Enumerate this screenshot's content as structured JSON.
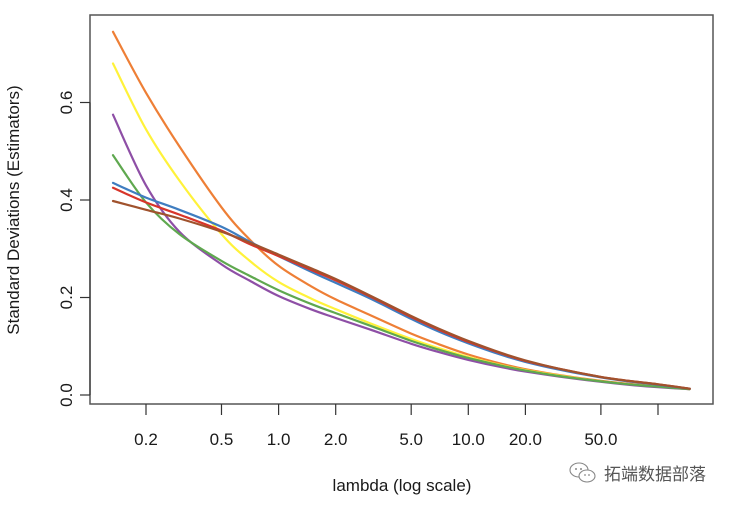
{
  "chart_data": {
    "type": "line",
    "title": "",
    "xlabel": "lambda (log scale)",
    "ylabel": "Standard Deviations (Estimators)",
    "xscale": "log",
    "xlim": [
      0.12,
      160
    ],
    "ylim": [
      -0.015,
      0.78
    ],
    "grid": false,
    "legend": "none",
    "xticks": [
      0.2,
      0.5,
      1.0,
      2.0,
      5.0,
      10.0,
      20.0,
      50.0,
      100.0
    ],
    "xtick_labels": [
      "0.2",
      "0.5",
      "1.0",
      "2.0",
      "5.0",
      "10.0",
      "20.0",
      "50.0",
      ""
    ],
    "yticks": [
      0.0,
      0.2,
      0.4,
      0.6
    ],
    "ytick_labels": [
      "0.0",
      "0.2",
      "0.4",
      "0.6"
    ],
    "x": [
      0.134,
      0.2,
      0.3,
      0.5,
      0.7,
      1.0,
      1.5,
      2.0,
      3.0,
      5.0,
      7.0,
      10.0,
      15.0,
      20.0,
      30.0,
      50.0,
      70.0,
      100.0,
      147.0
    ],
    "series": [
      {
        "name": "orange",
        "color": "#EE7F36",
        "values": [
          0.745,
          0.62,
          0.51,
          0.385,
          0.32,
          0.265,
          0.222,
          0.196,
          0.165,
          0.126,
          0.104,
          0.083,
          0.064,
          0.053,
          0.041,
          0.029,
          0.023,
          0.018,
          0.013
        ]
      },
      {
        "name": "yellow",
        "color": "#FFF23A",
        "values": [
          0.68,
          0.545,
          0.44,
          0.33,
          0.276,
          0.232,
          0.197,
          0.176,
          0.148,
          0.115,
          0.096,
          0.078,
          0.061,
          0.051,
          0.04,
          0.028,
          0.022,
          0.017,
          0.012
        ]
      },
      {
        "name": "purple",
        "color": "#8E4FA6",
        "values": [
          0.575,
          0.43,
          0.335,
          0.268,
          0.235,
          0.203,
          0.175,
          0.158,
          0.135,
          0.105,
          0.088,
          0.072,
          0.057,
          0.048,
          0.038,
          0.027,
          0.021,
          0.016,
          0.012
        ]
      },
      {
        "name": "green",
        "color": "#5FA84F",
        "values": [
          0.492,
          0.395,
          0.33,
          0.275,
          0.245,
          0.215,
          0.186,
          0.168,
          0.143,
          0.111,
          0.093,
          0.076,
          0.06,
          0.05,
          0.039,
          0.028,
          0.022,
          0.017,
          0.012
        ]
      },
      {
        "name": "blue",
        "color": "#3F7DC0",
        "values": [
          0.435,
          0.405,
          0.38,
          0.345,
          0.315,
          0.285,
          0.252,
          0.23,
          0.199,
          0.156,
          0.13,
          0.106,
          0.082,
          0.068,
          0.052,
          0.036,
          0.028,
          0.021,
          0.013
        ]
      },
      {
        "name": "red",
        "color": "#D8352A",
        "values": [
          0.425,
          0.395,
          0.37,
          0.337,
          0.31,
          0.285,
          0.256,
          0.235,
          0.203,
          0.16,
          0.134,
          0.109,
          0.085,
          0.07,
          0.054,
          0.037,
          0.029,
          0.022,
          0.013
        ]
      },
      {
        "name": "brown",
        "color": "#A0522D",
        "values": [
          0.398,
          0.38,
          0.362,
          0.335,
          0.313,
          0.288,
          0.259,
          0.238,
          0.205,
          0.162,
          0.136,
          0.111,
          0.086,
          0.071,
          0.054,
          0.037,
          0.029,
          0.022,
          0.013
        ]
      }
    ]
  },
  "watermark": {
    "icon": "wechat-icon",
    "text": "拓端数据部落"
  }
}
